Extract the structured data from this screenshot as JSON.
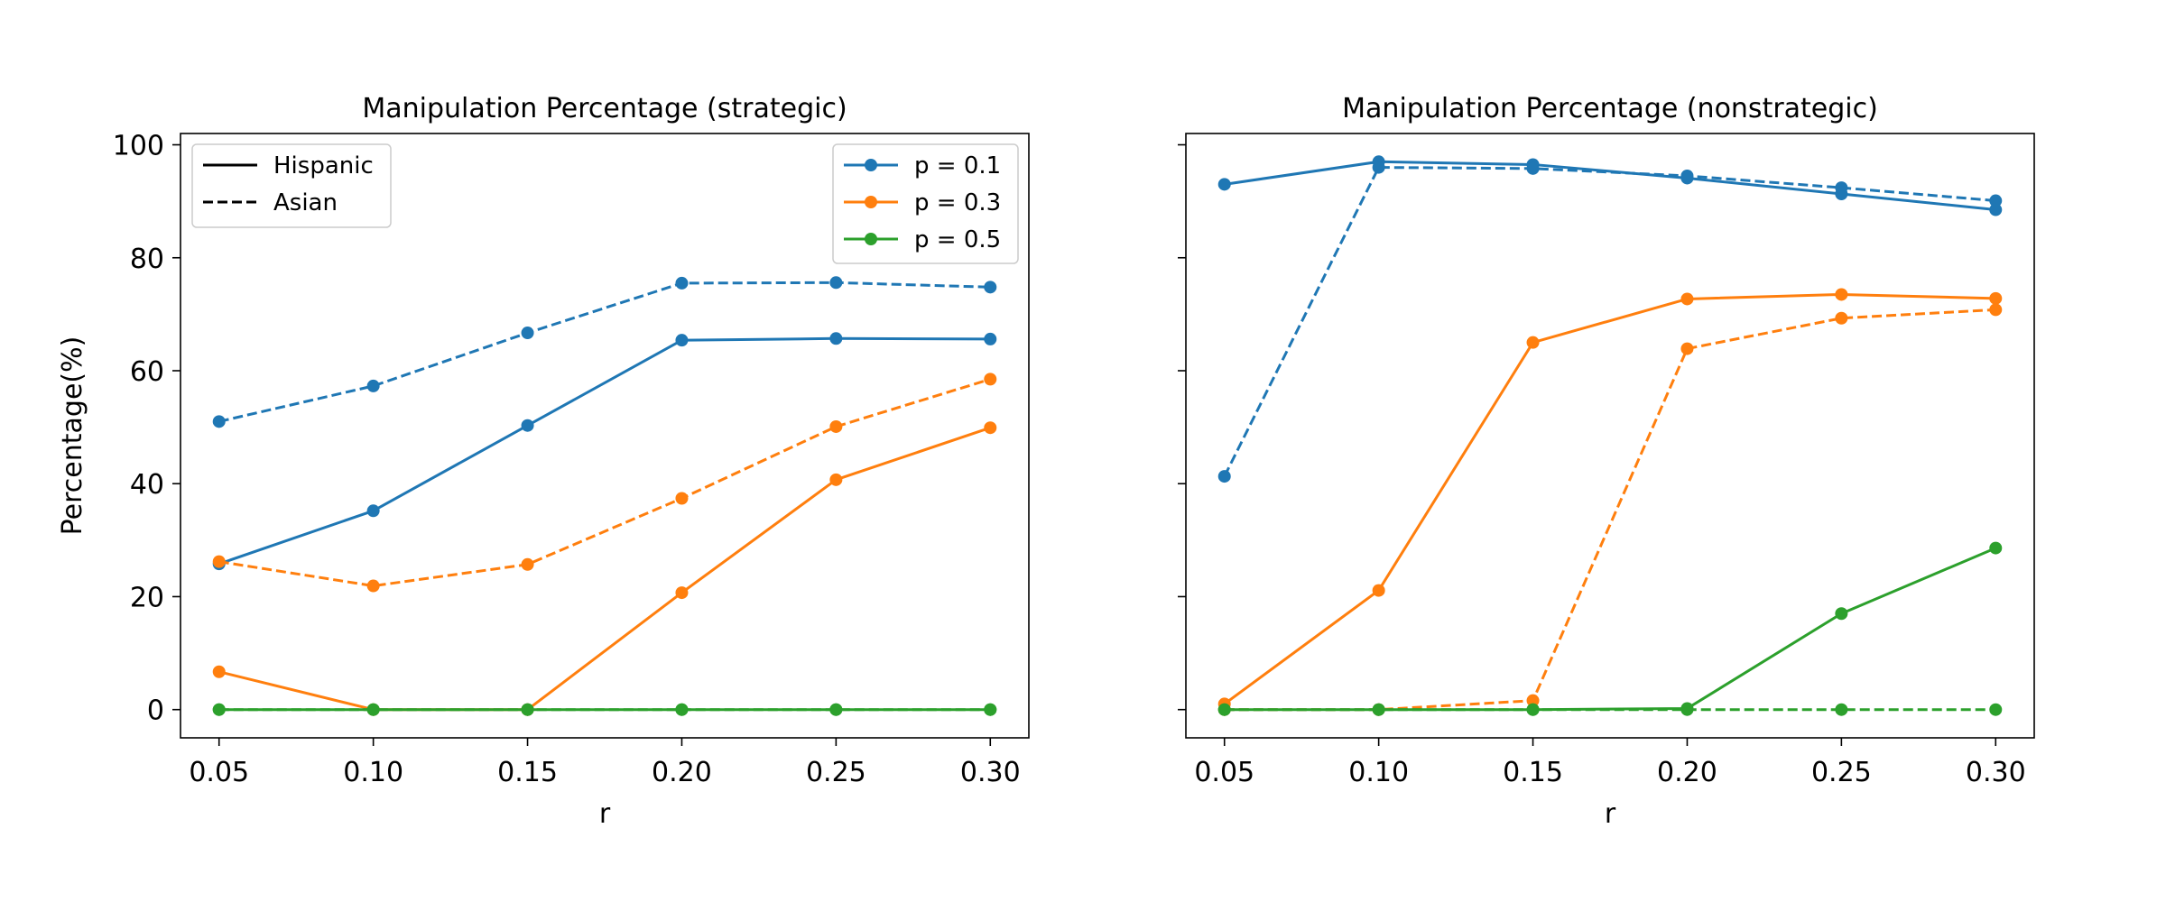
{
  "colors": {
    "p01": "#1f77b4",
    "p03": "#ff7f0e",
    "p05": "#2ca02c"
  },
  "chart_data": [
    {
      "type": "line",
      "title": "Manipulation Percentage (strategic)",
      "xlabel": "r",
      "ylabel": "Percentage(%)",
      "x": [
        0.05,
        0.1,
        0.15,
        0.2,
        0.25,
        0.3
      ],
      "x_tick_labels": [
        "0.05",
        "0.10",
        "0.15",
        "0.20",
        "0.25",
        "0.30"
      ],
      "y_ticks": [
        0,
        20,
        40,
        60,
        80,
        100
      ],
      "y_tick_labels": [
        "0",
        "20",
        "40",
        "60",
        "80",
        "100"
      ],
      "xlim": [
        0.0375,
        0.3125
      ],
      "ylim": [
        -5,
        102
      ],
      "series": [
        {
          "group": "p = 0.1",
          "style": "Hispanic",
          "color": "#1f77b4",
          "values": [
            25.8,
            35.2,
            50.3,
            65.4,
            65.7,
            65.6
          ]
        },
        {
          "group": "p = 0.1",
          "style": "Asian",
          "color": "#1f77b4",
          "values": [
            51.0,
            57.3,
            66.7,
            75.5,
            75.6,
            74.8
          ]
        },
        {
          "group": "p = 0.3",
          "style": "Hispanic",
          "color": "#ff7f0e",
          "values": [
            6.7,
            0.0,
            0.0,
            20.7,
            40.7,
            49.9
          ]
        },
        {
          "group": "p = 0.3",
          "style": "Asian",
          "color": "#ff7f0e",
          "values": [
            26.2,
            21.9,
            25.7,
            37.4,
            50.1,
            58.5
          ]
        },
        {
          "group": "p = 0.5",
          "style": "Hispanic",
          "color": "#2ca02c",
          "values": [
            0.0,
            0.0,
            0.0,
            0.0,
            0.0,
            0.0
          ]
        },
        {
          "group": "p = 0.5",
          "style": "Asian",
          "color": "#2ca02c",
          "values": [
            0.0,
            0.0,
            0.0,
            0.0,
            0.0,
            0.0
          ]
        }
      ],
      "legend_style": {
        "placement": "upper-left",
        "entries": [
          "Hispanic",
          "Asian"
        ]
      },
      "legend_color": {
        "placement": "upper-right",
        "entries": [
          "p = 0.1",
          "p = 0.3",
          "p = 0.5"
        ]
      }
    },
    {
      "type": "line",
      "title": "Manipulation Percentage (nonstrategic)",
      "xlabel": "r",
      "ylabel": "",
      "x": [
        0.05,
        0.1,
        0.15,
        0.2,
        0.25,
        0.3
      ],
      "x_tick_labels": [
        "0.05",
        "0.10",
        "0.15",
        "0.20",
        "0.25",
        "0.30"
      ],
      "y_ticks": [
        0,
        20,
        40,
        60,
        80,
        100
      ],
      "y_tick_labels": [],
      "xlim": [
        0.0375,
        0.3125
      ],
      "ylim": [
        -5,
        102
      ],
      "series": [
        {
          "group": "p = 0.1",
          "style": "Hispanic",
          "color": "#1f77b4",
          "values": [
            93.0,
            97.0,
            96.5,
            94.1,
            91.3,
            88.5
          ]
        },
        {
          "group": "p = 0.1",
          "style": "Asian",
          "color": "#1f77b4",
          "values": [
            41.3,
            96.0,
            95.8,
            94.5,
            92.4,
            90.1
          ]
        },
        {
          "group": "p = 0.3",
          "style": "Hispanic",
          "color": "#ff7f0e",
          "values": [
            1.0,
            21.1,
            65.0,
            72.7,
            73.5,
            72.8
          ]
        },
        {
          "group": "p = 0.3",
          "style": "Asian",
          "color": "#ff7f0e",
          "values": [
            0.0,
            0.0,
            1.6,
            63.9,
            69.3,
            70.8
          ]
        },
        {
          "group": "p = 0.5",
          "style": "Hispanic",
          "color": "#2ca02c",
          "values": [
            0.0,
            0.0,
            0.0,
            0.2,
            17.0,
            28.6
          ]
        },
        {
          "group": "p = 0.5",
          "style": "Asian",
          "color": "#2ca02c",
          "values": [
            0.0,
            0.0,
            0.0,
            0.0,
            0.0,
            0.0
          ]
        }
      ]
    }
  ]
}
